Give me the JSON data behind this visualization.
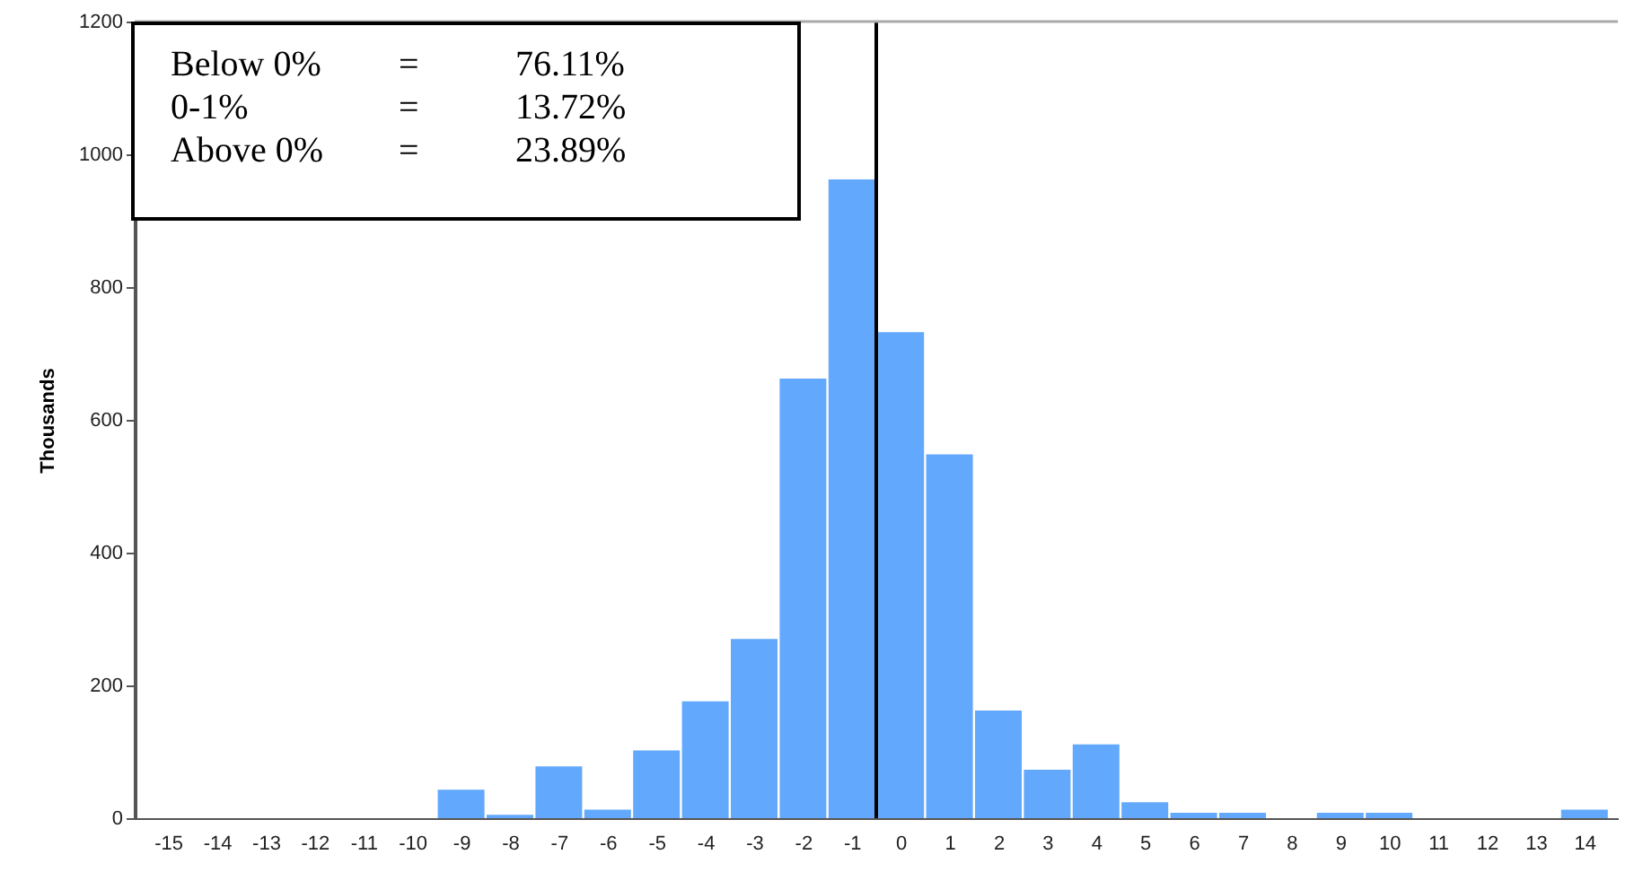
{
  "chart_data": {
    "type": "bar",
    "ylabel": "Thousands",
    "x": [
      -15,
      -14,
      -13,
      -12,
      -11,
      -10,
      -9,
      -8,
      -7,
      -6,
      -5,
      -4,
      -3,
      -2,
      -1,
      0,
      1,
      2,
      3,
      4,
      5,
      6,
      7,
      8,
      9,
      10,
      11,
      12,
      13,
      14
    ],
    "values": [
      0,
      0,
      0,
      0,
      0,
      0,
      43,
      5,
      78,
      13,
      102,
      176,
      270,
      662,
      962,
      732,
      548,
      162,
      73,
      111,
      24,
      8,
      8,
      0,
      8,
      8,
      0,
      0,
      0,
      13
    ],
    "color": "#62a8fd",
    "xlim": [
      -15.5,
      14.5
    ],
    "xticks": [
      -15,
      -14,
      -13,
      -12,
      -11,
      -10,
      -9,
      -8,
      -7,
      -6,
      -5,
      -4,
      -3,
      -2,
      -1,
      0,
      1,
      2,
      3,
      4,
      5,
      6,
      7,
      8,
      9,
      10,
      11,
      12,
      13,
      14
    ],
    "ylim": [
      0,
      1200
    ],
    "yticks": [
      0,
      200,
      400,
      600,
      800,
      1000,
      1200
    ],
    "ref_lines": [
      {
        "axis": "x",
        "value": -0.5,
        "color": "#000000"
      }
    ],
    "annotations": [
      "Below 0%",
      "=",
      "76.11%",
      "0-1%",
      "=",
      "13.72%",
      "Above 0%",
      "=",
      "23.89%"
    ],
    "grid": false
  }
}
